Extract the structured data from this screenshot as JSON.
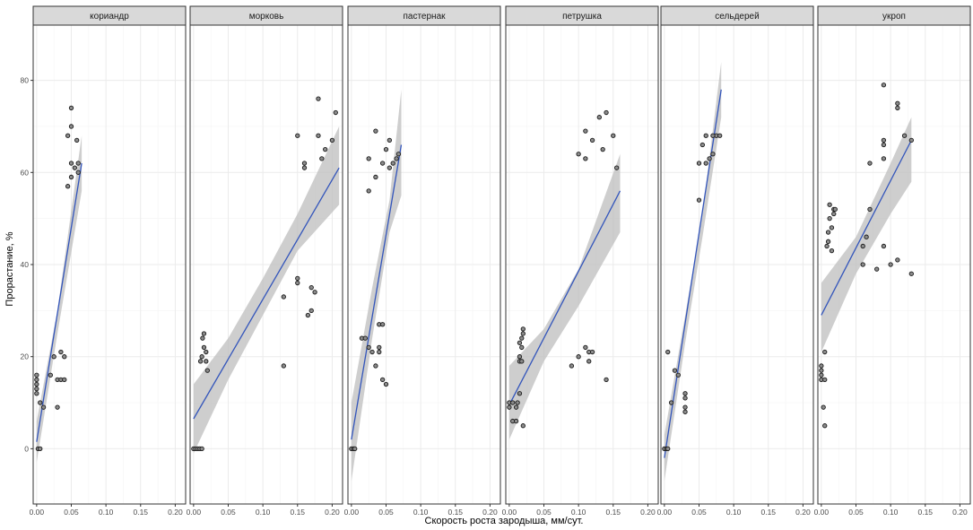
{
  "chart_data": {
    "type": "scatter",
    "facet_by": "culture",
    "xlabel": "Скорость роста зародыша, мм/сут.",
    "ylabel": "Прорастание, %",
    "xlim": [
      -0.005,
      0.215
    ],
    "ylim": [
      -12,
      92
    ],
    "x_ticks": [
      0.0,
      0.05,
      0.1,
      0.15,
      0.2
    ],
    "x_tick_labels": [
      "0.00",
      "0.05",
      "0.10",
      "0.15",
      "0.20"
    ],
    "y_ticks": [
      0,
      20,
      40,
      60,
      80
    ],
    "y_tick_labels": [
      "0",
      "20",
      "40",
      "60",
      "80"
    ],
    "grid": true,
    "theme": "bw",
    "colors": {
      "point_fill": "#8c8c8c",
      "point_stroke": "#1a1a1a",
      "fit_line": "#3355bb",
      "band": "#bdbdbd",
      "strip_bg": "#d9d9d9",
      "grid": "#ebebeb",
      "frame": "#333333"
    },
    "panels": [
      {
        "title": "кориандр",
        "points": [
          [
            0.0,
            16
          ],
          [
            0.0,
            15
          ],
          [
            0.0,
            14
          ],
          [
            0.0,
            13
          ],
          [
            0.0,
            12
          ],
          [
            0.005,
            10
          ],
          [
            0.002,
            0
          ],
          [
            0.005,
            0
          ],
          [
            0.01,
            9
          ],
          [
            0.02,
            16
          ],
          [
            0.025,
            20
          ],
          [
            0.03,
            15
          ],
          [
            0.035,
            15
          ],
          [
            0.035,
            21
          ],
          [
            0.04,
            20
          ],
          [
            0.04,
            15
          ],
          [
            0.03,
            9
          ],
          [
            0.045,
            57
          ],
          [
            0.045,
            68
          ],
          [
            0.05,
            59
          ],
          [
            0.05,
            62
          ],
          [
            0.05,
            70
          ],
          [
            0.05,
            74
          ],
          [
            0.055,
            61
          ],
          [
            0.058,
            67
          ],
          [
            0.06,
            60
          ],
          [
            0.06,
            62
          ]
        ],
        "fit": {
          "x": [
            0.0,
            0.065
          ],
          "y": [
            1.5,
            62
          ]
        },
        "band_upper": [
          [
            0.0,
            6
          ],
          [
            0.03,
            30
          ],
          [
            0.065,
            68
          ]
        ],
        "band_lower": [
          [
            0.0,
            -3
          ],
          [
            0.03,
            25
          ],
          [
            0.065,
            56
          ]
        ]
      },
      {
        "title": "морковь",
        "points": [
          [
            0.0,
            0
          ],
          [
            0.003,
            0
          ],
          [
            0.006,
            0
          ],
          [
            0.009,
            0
          ],
          [
            0.012,
            0
          ],
          [
            0.01,
            19
          ],
          [
            0.012,
            20
          ],
          [
            0.013,
            24
          ],
          [
            0.015,
            22
          ],
          [
            0.018,
            21
          ],
          [
            0.015,
            25
          ],
          [
            0.02,
            17
          ],
          [
            0.018,
            19
          ],
          [
            0.13,
            33
          ],
          [
            0.13,
            18
          ],
          [
            0.15,
            36
          ],
          [
            0.15,
            37
          ],
          [
            0.15,
            68
          ],
          [
            0.16,
            61
          ],
          [
            0.16,
            62
          ],
          [
            0.165,
            29
          ],
          [
            0.17,
            30
          ],
          [
            0.17,
            35
          ],
          [
            0.175,
            34
          ],
          [
            0.18,
            68
          ],
          [
            0.18,
            76
          ],
          [
            0.185,
            63
          ],
          [
            0.19,
            65
          ],
          [
            0.2,
            67
          ],
          [
            0.205,
            73
          ]
        ],
        "fit": {
          "x": [
            0.0,
            0.21
          ],
          "y": [
            6.5,
            61
          ]
        },
        "band_upper": [
          [
            0.0,
            14
          ],
          [
            0.05,
            24
          ],
          [
            0.1,
            37
          ],
          [
            0.15,
            51
          ],
          [
            0.21,
            70
          ]
        ],
        "band_lower": [
          [
            0.0,
            -1
          ],
          [
            0.05,
            15
          ],
          [
            0.1,
            29
          ],
          [
            0.15,
            43
          ],
          [
            0.21,
            53
          ]
        ]
      },
      {
        "title": "пастернак",
        "points": [
          [
            0.0,
            0
          ],
          [
            0.003,
            0
          ],
          [
            0.005,
            0
          ],
          [
            0.015,
            24
          ],
          [
            0.02,
            24
          ],
          [
            0.025,
            22
          ],
          [
            0.025,
            56
          ],
          [
            0.025,
            63
          ],
          [
            0.03,
            21
          ],
          [
            0.035,
            18
          ],
          [
            0.035,
            59
          ],
          [
            0.035,
            69
          ],
          [
            0.04,
            21
          ],
          [
            0.04,
            22
          ],
          [
            0.045,
            15
          ],
          [
            0.045,
            62
          ],
          [
            0.05,
            14
          ],
          [
            0.05,
            65
          ],
          [
            0.055,
            61
          ],
          [
            0.055,
            67
          ],
          [
            0.06,
            62
          ],
          [
            0.065,
            63
          ],
          [
            0.068,
            64
          ],
          [
            0.04,
            27
          ],
          [
            0.045,
            27
          ]
        ],
        "fit": {
          "x": [
            0.0,
            0.072
          ],
          "y": [
            2,
            66
          ]
        },
        "band_upper": [
          [
            0.0,
            10
          ],
          [
            0.03,
            35
          ],
          [
            0.055,
            54
          ],
          [
            0.072,
            78
          ]
        ],
        "band_lower": [
          [
            0.0,
            -7
          ],
          [
            0.03,
            24
          ],
          [
            0.055,
            47
          ],
          [
            0.072,
            55
          ]
        ]
      },
      {
        "title": "петрушка",
        "points": [
          [
            0.0,
            9
          ],
          [
            0.0,
            10
          ],
          [
            0.005,
            6
          ],
          [
            0.005,
            10
          ],
          [
            0.01,
            6
          ],
          [
            0.01,
            9
          ],
          [
            0.012,
            10
          ],
          [
            0.015,
            20
          ],
          [
            0.015,
            23
          ],
          [
            0.018,
            22
          ],
          [
            0.018,
            24
          ],
          [
            0.02,
            25
          ],
          [
            0.02,
            26
          ],
          [
            0.02,
            5
          ],
          [
            0.015,
            12
          ],
          [
            0.015,
            19
          ],
          [
            0.018,
            19
          ],
          [
            0.09,
            18
          ],
          [
            0.1,
            20
          ],
          [
            0.1,
            64
          ],
          [
            0.11,
            22
          ],
          [
            0.11,
            63
          ],
          [
            0.11,
            69
          ],
          [
            0.115,
            21
          ],
          [
            0.115,
            19
          ],
          [
            0.12,
            21
          ],
          [
            0.12,
            67
          ],
          [
            0.13,
            72
          ],
          [
            0.135,
            65
          ],
          [
            0.14,
            73
          ],
          [
            0.14,
            15
          ],
          [
            0.15,
            68
          ],
          [
            0.155,
            61
          ]
        ],
        "fit": {
          "x": [
            0.0,
            0.16
          ],
          "y": [
            9.5,
            56
          ]
        },
        "band_upper": [
          [
            0.0,
            18
          ],
          [
            0.05,
            26
          ],
          [
            0.1,
            39
          ],
          [
            0.16,
            64
          ]
        ],
        "band_lower": [
          [
            0.0,
            2
          ],
          [
            0.05,
            19
          ],
          [
            0.1,
            31
          ],
          [
            0.16,
            47
          ]
        ]
      },
      {
        "title": "сельдерей",
        "points": [
          [
            0.0,
            0
          ],
          [
            0.003,
            0
          ],
          [
            0.005,
            0
          ],
          [
            0.005,
            21
          ],
          [
            0.01,
            10
          ],
          [
            0.015,
            17
          ],
          [
            0.02,
            16
          ],
          [
            0.03,
            12
          ],
          [
            0.03,
            11
          ],
          [
            0.03,
            9
          ],
          [
            0.03,
            8
          ],
          [
            0.05,
            54
          ],
          [
            0.05,
            62
          ],
          [
            0.055,
            66
          ],
          [
            0.06,
            62
          ],
          [
            0.06,
            68
          ],
          [
            0.065,
            63
          ],
          [
            0.07,
            64
          ],
          [
            0.075,
            68
          ],
          [
            0.08,
            68
          ],
          [
            0.07,
            68
          ]
        ],
        "fit": {
          "x": [
            0.0,
            0.082
          ],
          "y": [
            -2,
            78
          ]
        },
        "band_upper": [
          [
            0.0,
            3
          ],
          [
            0.03,
            29
          ],
          [
            0.055,
            51
          ],
          [
            0.082,
            84
          ]
        ],
        "band_lower": [
          [
            0.0,
            -7
          ],
          [
            0.03,
            23
          ],
          [
            0.055,
            46
          ],
          [
            0.082,
            72
          ]
        ]
      },
      {
        "title": "укроп",
        "points": [
          [
            0.0,
            15
          ],
          [
            0.0,
            16
          ],
          [
            0.0,
            17
          ],
          [
            0.0,
            18
          ],
          [
            0.003,
            9
          ],
          [
            0.005,
            5
          ],
          [
            0.005,
            21
          ],
          [
            0.005,
            15
          ],
          [
            0.008,
            44
          ],
          [
            0.01,
            45
          ],
          [
            0.01,
            47
          ],
          [
            0.012,
            50
          ],
          [
            0.012,
            53
          ],
          [
            0.015,
            48
          ],
          [
            0.015,
            43
          ],
          [
            0.018,
            51
          ],
          [
            0.018,
            52
          ],
          [
            0.02,
            52
          ],
          [
            0.06,
            40
          ],
          [
            0.06,
            44
          ],
          [
            0.065,
            46
          ],
          [
            0.07,
            52
          ],
          [
            0.07,
            62
          ],
          [
            0.08,
            39
          ],
          [
            0.09,
            63
          ],
          [
            0.09,
            66
          ],
          [
            0.09,
            67
          ],
          [
            0.09,
            79
          ],
          [
            0.09,
            44
          ],
          [
            0.1,
            40
          ],
          [
            0.11,
            41
          ],
          [
            0.11,
            74
          ],
          [
            0.11,
            75
          ],
          [
            0.12,
            68
          ],
          [
            0.13,
            67
          ],
          [
            0.13,
            38
          ]
        ],
        "fit": {
          "x": [
            0.0,
            0.13
          ],
          "y": [
            29,
            67
          ]
        },
        "band_upper": [
          [
            0.0,
            36
          ],
          [
            0.05,
            46
          ],
          [
            0.1,
            62
          ],
          [
            0.13,
            72
          ]
        ],
        "band_lower": [
          [
            0.0,
            21
          ],
          [
            0.05,
            38
          ],
          [
            0.1,
            51
          ],
          [
            0.13,
            58
          ]
        ]
      }
    ]
  }
}
